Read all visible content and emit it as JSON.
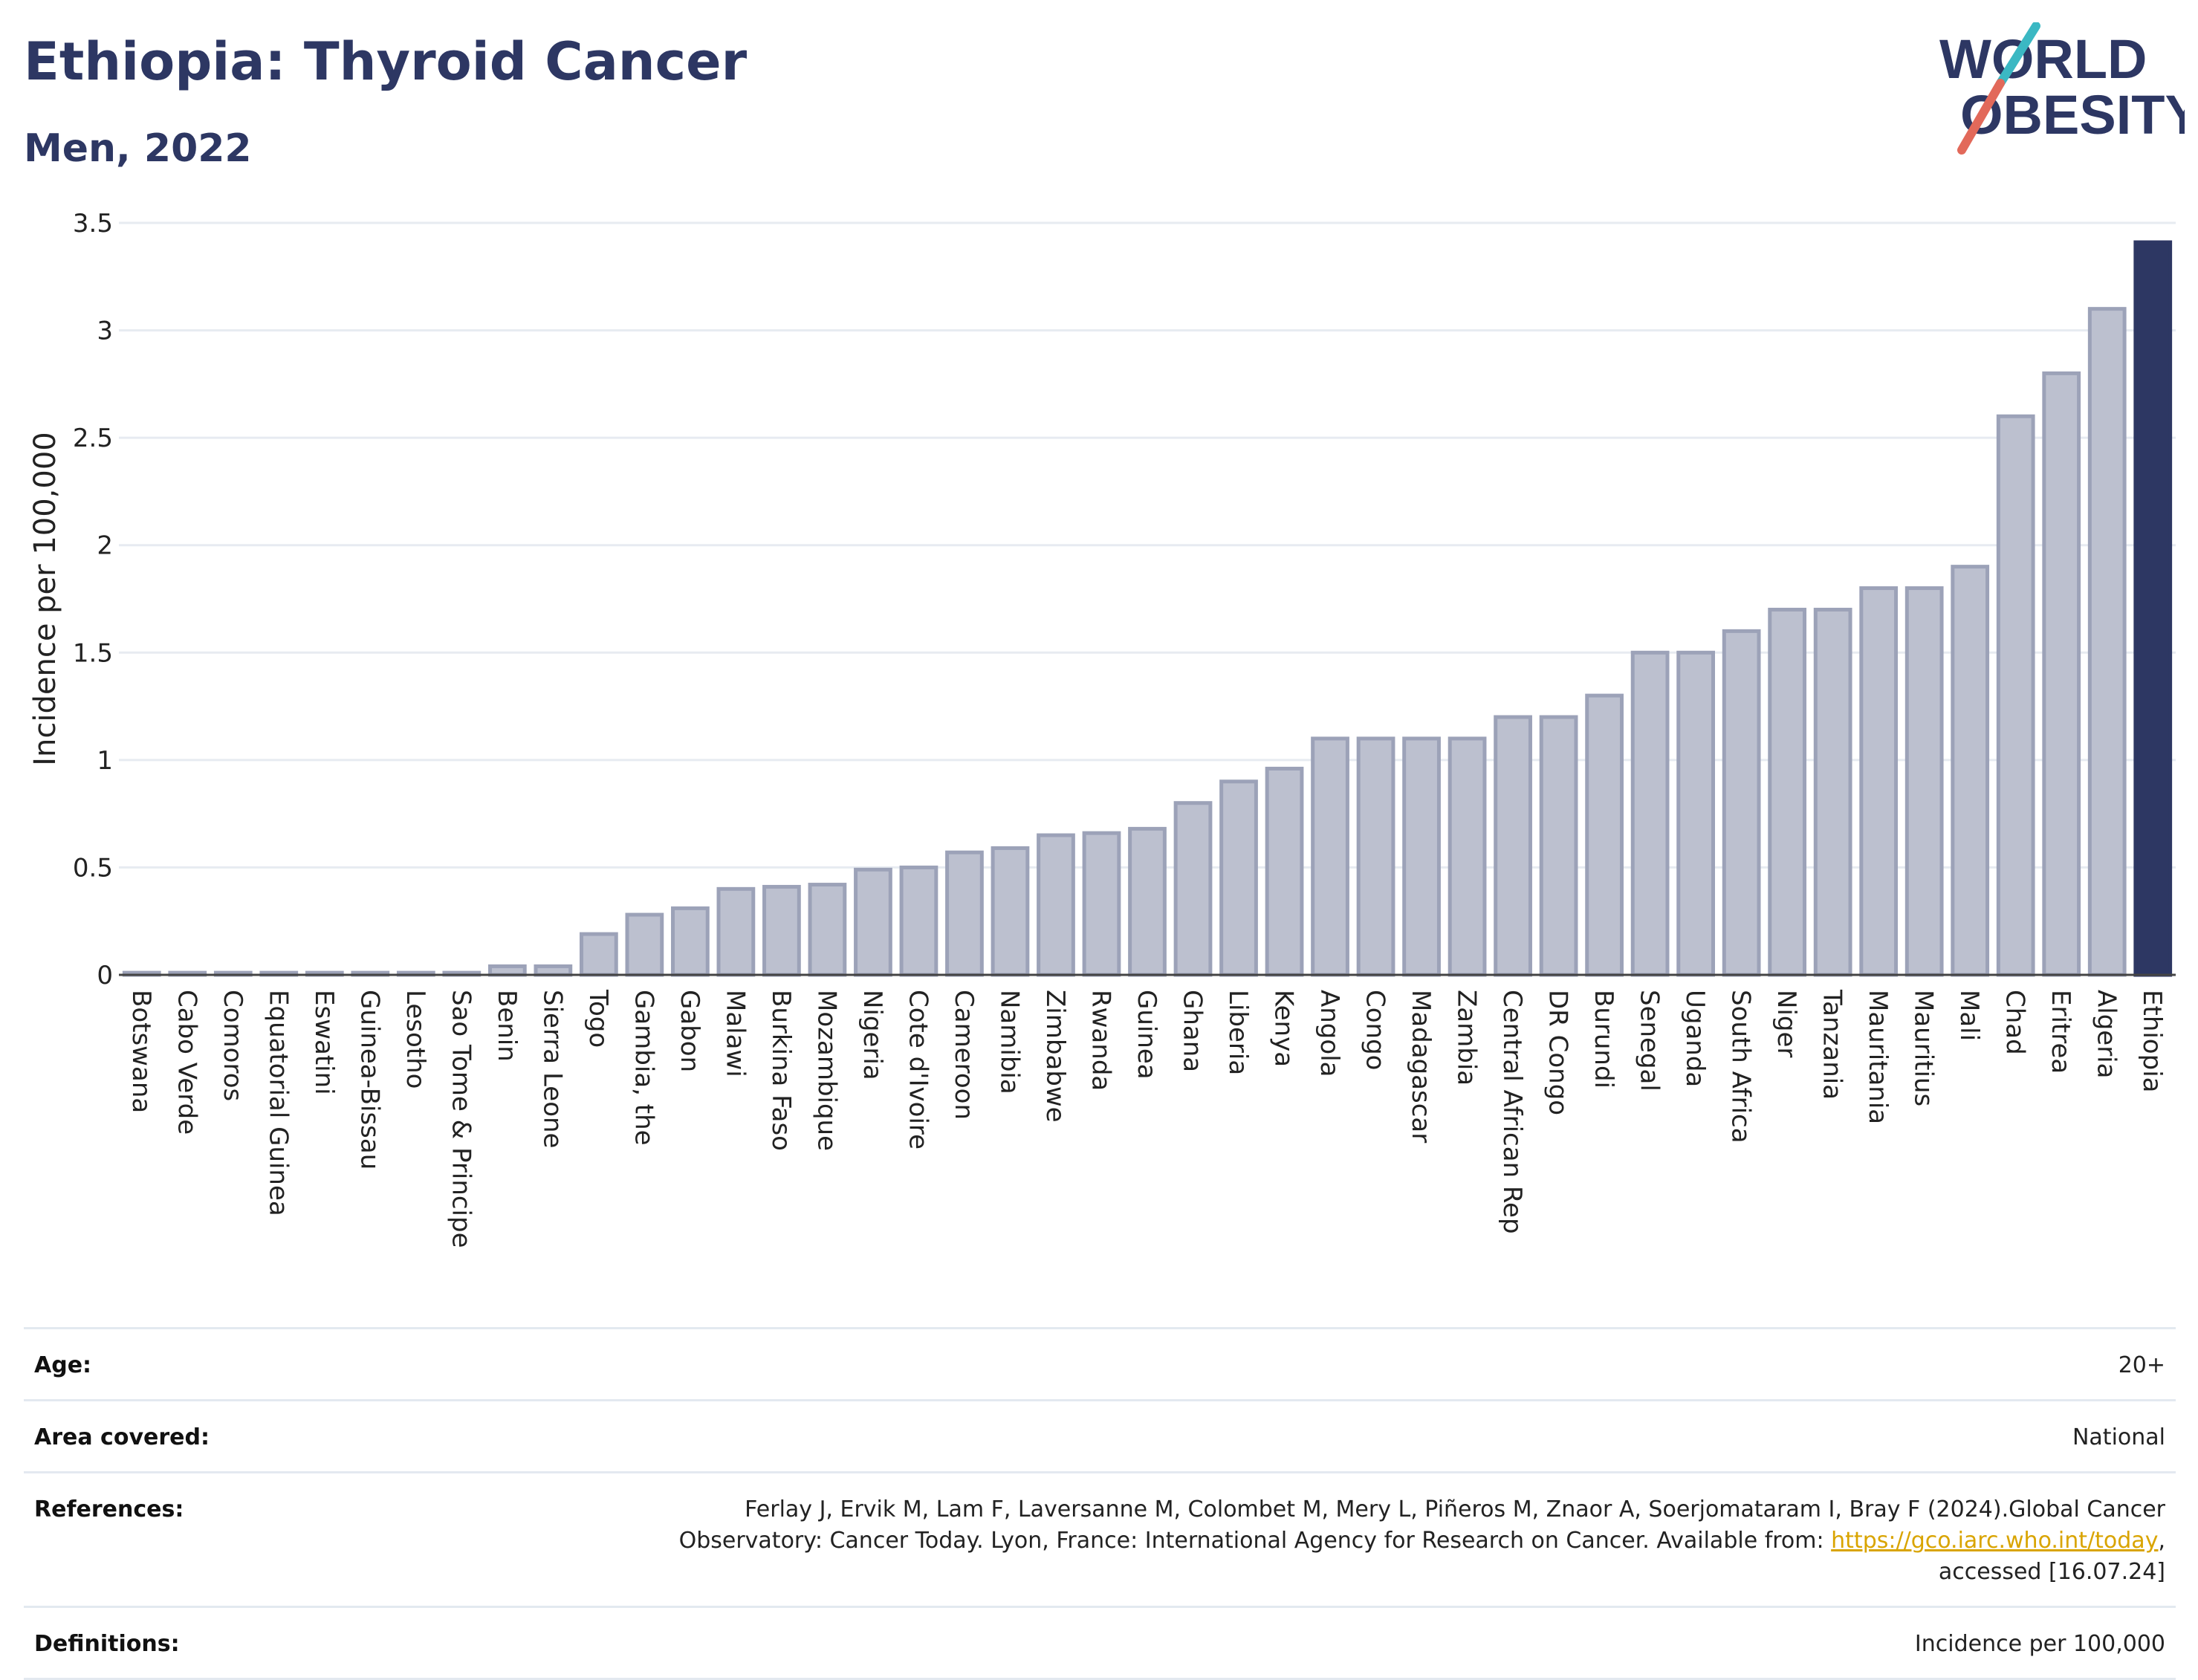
{
  "header": {
    "title": "Ethiopia: Thyroid Cancer",
    "subtitle": "Men, 2022"
  },
  "logo": {
    "line1": "WORLD",
    "line2": "OBESITY"
  },
  "chart_data": {
    "type": "bar",
    "ylabel": "Incidence per 100,000",
    "ylim": [
      0,
      3.5
    ],
    "yticks": [
      "0",
      "0.5",
      "1",
      "1.5",
      "2",
      "2.5",
      "3",
      "3.5"
    ],
    "grid": true,
    "highlight": "Ethiopia",
    "categories": [
      "Botswana",
      "Cabo Verde",
      "Comoros",
      "Equatorial Guinea",
      "Eswatini",
      "Guinea-Bissau",
      "Lesotho",
      "Sao Tome & Principe",
      "Benin",
      "Sierra Leone",
      "Togo",
      "Gambia, the",
      "Gabon",
      "Malawi",
      "Burkina Faso",
      "Mozambique",
      "Nigeria",
      "Cote d'Ivoire",
      "Cameroon",
      "Namibia",
      "Zimbabwe",
      "Rwanda",
      "Guinea",
      "Ghana",
      "Liberia",
      "Kenya",
      "Angola",
      "Congo",
      "Madagascar",
      "Zambia",
      "Central African Rep",
      "DR Congo",
      "Burundi",
      "Senegal",
      "Uganda",
      "South Africa",
      "Niger",
      "Tanzania",
      "Mauritania",
      "Mauritius",
      "Mali",
      "Chad",
      "Eritrea",
      "Algeria",
      "Ethiopia"
    ],
    "values": [
      0.01,
      0.01,
      0.01,
      0.01,
      0.01,
      0.01,
      0.01,
      0.01,
      0.04,
      0.04,
      0.19,
      0.28,
      0.31,
      0.4,
      0.41,
      0.42,
      0.49,
      0.5,
      0.57,
      0.59,
      0.65,
      0.66,
      0.68,
      0.8,
      0.9,
      0.96,
      1.1,
      1.1,
      1.1,
      1.1,
      1.2,
      1.2,
      1.3,
      1.5,
      1.5,
      1.6,
      1.7,
      1.7,
      1.8,
      1.8,
      1.9,
      2.6,
      2.8,
      3.1,
      3.41
    ],
    "colors": {
      "bar_fill": "#bcc0cf",
      "bar_stroke": "#9ca2b8",
      "highlight": "#2d3763",
      "grid": "#e7ebf1"
    }
  },
  "info": {
    "age_label": "Age:",
    "age_value": "20+",
    "area_label": "Area covered:",
    "area_value": "National",
    "ref_label": "References:",
    "ref_text_1": "Ferlay J, Ervik M, Lam F, Laversanne M, Colombet M, Mery L, Piñeros M, Znaor A, Soerjomataram I, Bray F (2024).Global Cancer Observatory: Cancer Today. Lyon, France: International Agency for Research on Cancer. Available from: ",
    "ref_link": "https://gco.iarc.who.int/today",
    "ref_text_2": ", accessed [16.07.24]",
    "def_label": "Definitions:",
    "def_value": "Incidence per 100,000"
  }
}
